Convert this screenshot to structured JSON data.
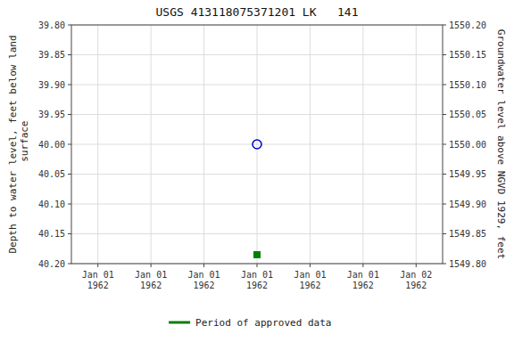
{
  "chart_data": {
    "type": "scatter",
    "title": "USGS 413118075371201 LK   141",
    "y_label": "Depth to water level, feet below land\n surface",
    "y2_label": "Groundwater level above NGVD 1929, feet",
    "categories": [
      "Jan 01\n1962",
      "Jan 01\n1962",
      "Jan 01\n1962",
      "Jan 01\n1962",
      "Jan 01\n1962",
      "Jan 01\n1962",
      "Jan 02\n1962"
    ],
    "series": [
      {
        "color": "#0000cc",
        "marker": "circle",
        "values": [
          null,
          null,
          null,
          40.0,
          null,
          null,
          null
        ]
      },
      {
        "name": "Period of approved data",
        "color": "#008000",
        "marker": "square",
        "values": [
          null,
          null,
          null,
          40.185,
          null,
          null,
          null
        ]
      }
    ],
    "ylim": [
      40.2,
      39.8
    ],
    "yticks": [
      {
        "value": 39.8,
        "label": "39.80"
      },
      39.85,
      {
        "value": 39.9,
        "label": "39.90"
      },
      39.95,
      {
        "value": 40.0,
        "label": "40.00"
      },
      40.05,
      {
        "value": 40.1,
        "label": "40.10"
      },
      40.15,
      {
        "value": 40.2,
        "label": "40.20"
      }
    ],
    "y2lim": [
      1549.8,
      1550.2
    ],
    "y2ticks": [
      {
        "value": 1549.8,
        "label": "1549.80"
      },
      1549.85,
      {
        "value": 1549.9,
        "label": "1549.90"
      },
      1549.95,
      {
        "value": 1550.0,
        "label": "1550.00"
      },
      1550.05,
      {
        "value": 1550.1,
        "label": "1550.10"
      },
      1550.15,
      {
        "value": 1550.2,
        "label": "1550.20"
      }
    ],
    "grid": true,
    "legend": "bottom"
  }
}
